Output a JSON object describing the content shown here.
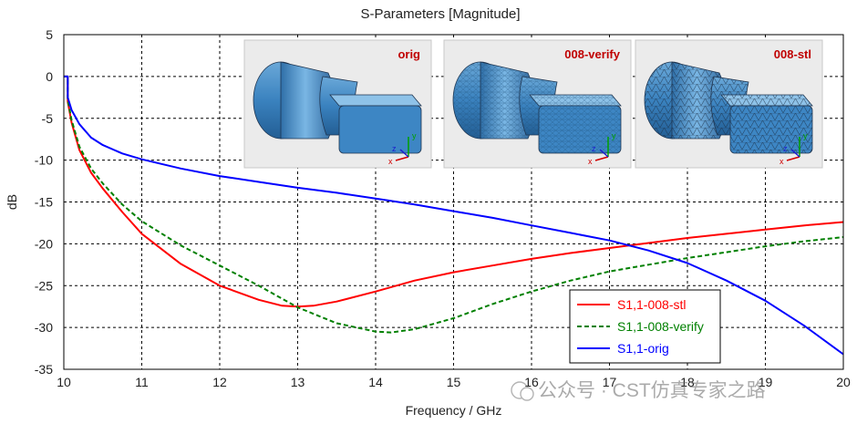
{
  "chart_data": {
    "type": "line",
    "title": "S-Parameters [Magnitude]",
    "xlabel": "Frequency / GHz",
    "ylabel": "dB",
    "xlim": [
      10,
      20
    ],
    "ylim": [
      -35,
      5
    ],
    "xticks": [
      10,
      11,
      12,
      13,
      14,
      15,
      16,
      17,
      18,
      19,
      20
    ],
    "yticks": [
      5,
      0,
      -5,
      -10,
      -15,
      -20,
      -25,
      -30,
      -35
    ],
    "grid": true,
    "legend_position": "bottom-right",
    "series": [
      {
        "name": "S1,1-008-stl",
        "color": "#ff0000",
        "style": "solid",
        "x": [
          10.05,
          10.1,
          10.2,
          10.35,
          10.5,
          10.75,
          11.0,
          11.5,
          12.0,
          12.5,
          12.8,
          13.0,
          13.2,
          13.5,
          14.0,
          14.5,
          15.0,
          15.5,
          16.0,
          16.5,
          17.0,
          17.5,
          18.0,
          18.5,
          19.0,
          19.5,
          20.0
        ],
        "y": [
          -3.0,
          -5.5,
          -8.8,
          -11.5,
          -13.4,
          -16.2,
          -18.8,
          -22.4,
          -25.0,
          -26.7,
          -27.4,
          -27.5,
          -27.4,
          -26.9,
          -25.7,
          -24.4,
          -23.4,
          -22.6,
          -21.8,
          -21.1,
          -20.5,
          -19.9,
          -19.3,
          -18.8,
          -18.3,
          -17.8,
          -17.4
        ]
      },
      {
        "name": "S1,1-008-verify",
        "color": "#008000",
        "style": "dashed",
        "x": [
          10.05,
          10.1,
          10.2,
          10.35,
          10.5,
          10.75,
          11.0,
          11.5,
          12.0,
          12.5,
          13.0,
          13.5,
          14.0,
          14.2,
          14.5,
          15.0,
          15.5,
          16.0,
          16.5,
          17.0,
          17.5,
          18.0,
          18.5,
          19.0,
          19.5,
          20.0
        ],
        "y": [
          -2.8,
          -5.2,
          -8.4,
          -11.0,
          -12.8,
          -15.3,
          -17.3,
          -20.2,
          -22.6,
          -25.0,
          -27.6,
          -29.5,
          -30.5,
          -30.6,
          -30.2,
          -28.9,
          -27.2,
          -25.7,
          -24.4,
          -23.3,
          -22.5,
          -21.7,
          -21.0,
          -20.3,
          -19.7,
          -19.2
        ]
      },
      {
        "name": "S1,1-orig",
        "color": "#0000ff",
        "style": "solid",
        "x": [
          10.05,
          10.1,
          10.2,
          10.35,
          10.5,
          10.75,
          11.0,
          11.5,
          12.0,
          12.5,
          13.0,
          13.5,
          14.0,
          14.5,
          15.0,
          15.5,
          16.0,
          16.5,
          17.0,
          17.5,
          18.0,
          18.5,
          19.0,
          19.5,
          20.0
        ],
        "y": [
          -2.5,
          -4.0,
          -5.7,
          -7.3,
          -8.2,
          -9.2,
          -9.9,
          -11.0,
          -11.9,
          -12.6,
          -13.3,
          -13.9,
          -14.6,
          -15.3,
          -16.1,
          -16.9,
          -17.8,
          -18.7,
          -19.6,
          -20.8,
          -22.3,
          -24.4,
          -26.8,
          -29.8,
          -33.2
        ]
      }
    ],
    "insets": [
      {
        "label": "orig",
        "style": "smooth"
      },
      {
        "label": "008-verify",
        "style": "mesh"
      },
      {
        "label": "008-stl",
        "style": "tri"
      }
    ],
    "axis_triad_letters": [
      "x",
      "y",
      "z"
    ],
    "watermark": "公众号 · CST仿真专家之路"
  }
}
